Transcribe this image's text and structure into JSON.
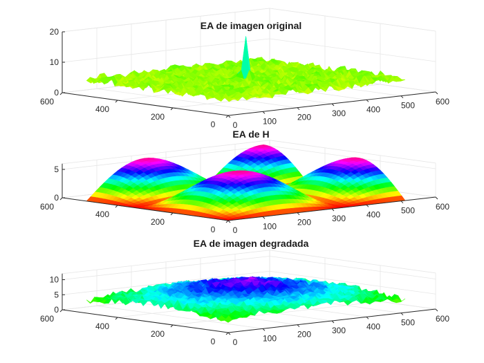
{
  "chart_data": [
    {
      "type": "surface",
      "title": "EA de imagen original",
      "xlabel": "",
      "ylabel": "",
      "zlabel": "",
      "xlim": [
        0,
        600
      ],
      "ylim": [
        0,
        600
      ],
      "zlim": [
        0,
        20
      ],
      "x_ticks": [
        "0",
        "100",
        "200",
        "300",
        "400",
        "500",
        "600"
      ],
      "y_ticks": [
        "600",
        "400",
        "200",
        "0"
      ],
      "z_ticks": [
        "0",
        "10",
        "20"
      ],
      "grid": true,
      "colormap": "hsv",
      "surface": {
        "base": 5.5,
        "noise": 1.5,
        "peak_at": [
          256,
          256
        ],
        "peak": 17
      }
    },
    {
      "type": "surface",
      "title": "EA de H",
      "xlabel": "",
      "ylabel": "",
      "zlabel": "",
      "xlim": [
        0,
        600
      ],
      "ylim": [
        0,
        600
      ],
      "zlim": [
        0,
        6
      ],
      "x_ticks": [
        "0",
        "100",
        "200",
        "300",
        "400",
        "500",
        "600"
      ],
      "y_ticks": [
        "600",
        "400",
        "200",
        "0"
      ],
      "z_ticks": [
        "0",
        "5"
      ],
      "grid": true,
      "colormap": "hsv",
      "surface": {
        "max": 6.4,
        "shape": "sinc-lobes"
      }
    },
    {
      "type": "surface",
      "title": "EA de imagen degradada",
      "xlabel": "",
      "ylabel": "",
      "zlabel": "",
      "xlim": [
        0,
        600
      ],
      "ylim": [
        0,
        600
      ],
      "zlim": [
        0,
        12
      ],
      "x_ticks": [
        "0",
        "100",
        "200",
        "300",
        "400",
        "500",
        "600"
      ],
      "y_ticks": [
        "600",
        "400",
        "200",
        "0"
      ],
      "z_ticks": [
        "0",
        "5",
        "10"
      ],
      "grid": true,
      "colormap": "hsv",
      "surface": {
        "max": 11,
        "noise": 1.2
      }
    }
  ]
}
